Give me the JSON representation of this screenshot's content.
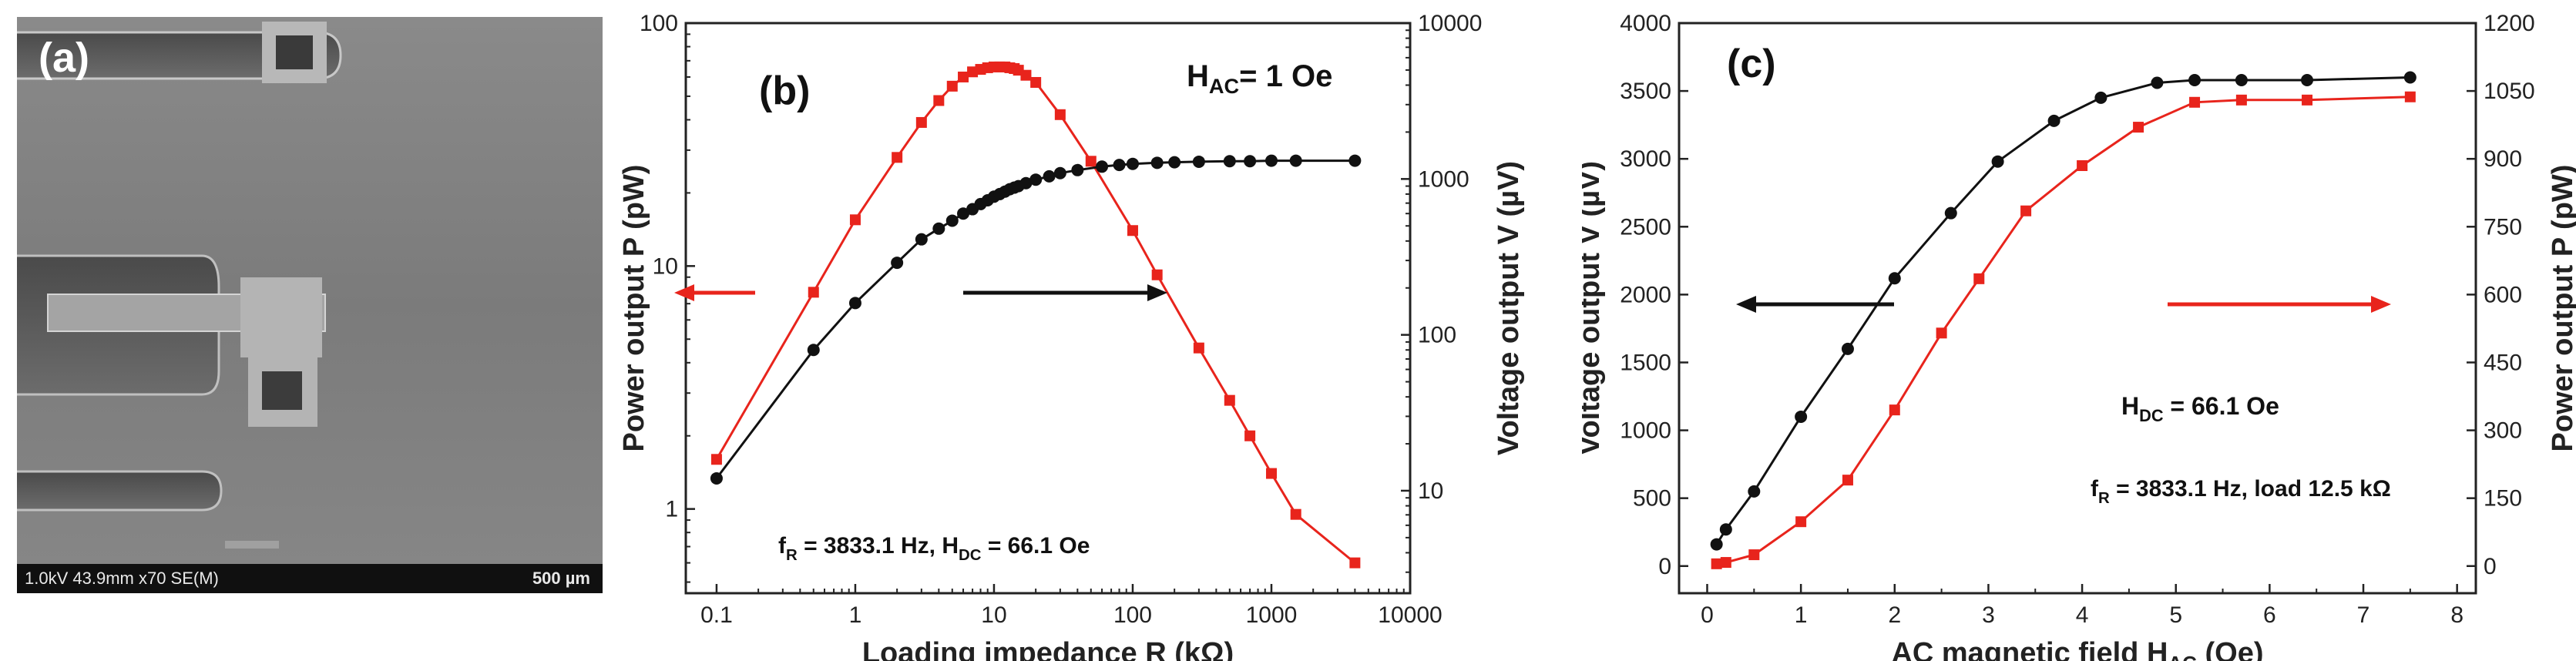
{
  "panel_a": {
    "label": "(a)",
    "sem_info": "1.0kV 43.9mm x70 SE(M)",
    "scale_bar": "500 µm"
  },
  "chart_data": [
    {
      "type": "line",
      "panel_label": "(b)",
      "xscale": "log",
      "xlim": [
        0.06,
        10000
      ],
      "xticks": [
        "0.1",
        "1",
        "10",
        "100",
        "1000",
        "10000"
      ],
      "xlabel": "Loading impedance R (kΩ)",
      "y_left": {
        "label": "Power output P (pW)",
        "scale": "log",
        "lim": [
          0.45,
          100
        ],
        "ticks": [
          "1",
          "10",
          "100"
        ]
      },
      "y_right": {
        "label": "Voltage output V (µV)",
        "scale": "log",
        "lim": [
          2.2,
          10000
        ],
        "ticks": [
          "10",
          "100",
          "1000",
          "10000"
        ]
      },
      "annotations": [
        {
          "text": "H",
          "sub": "AC",
          "rest": "= 1 Oe"
        },
        {
          "text": "f",
          "sub": "R",
          "rest": " = 3833.1 Hz,   H",
          "sub2": "DC",
          "rest2": " = 66.1 Oe"
        }
      ],
      "series": [
        {
          "name": "Power",
          "axis": "left",
          "color": "#e8241c",
          "marker": "square",
          "x": [
            0.1,
            0.5,
            1,
            2,
            3,
            4,
            5,
            6,
            7,
            8,
            9,
            10,
            11,
            12,
            13,
            14,
            15,
            17,
            20,
            30,
            50,
            100,
            150,
            300,
            500,
            700,
            1000,
            1500,
            4000
          ],
          "y": [
            1.6,
            7.8,
            15.5,
            28,
            39,
            48,
            55,
            60,
            63,
            64.5,
            65.5,
            66,
            66,
            66,
            65.5,
            65,
            64,
            61,
            57,
            42,
            27,
            14,
            9.2,
            4.6,
            2.8,
            2.0,
            1.4,
            0.95,
            0.6
          ]
        },
        {
          "name": "Voltage",
          "axis": "right",
          "color": "#111111",
          "marker": "circle",
          "x": [
            0.1,
            0.5,
            1,
            2,
            3,
            4,
            5,
            6,
            7,
            8,
            9,
            10,
            11,
            12,
            13,
            14,
            15,
            17,
            20,
            25,
            30,
            40,
            60,
            80,
            100,
            150,
            200,
            300,
            500,
            700,
            1000,
            1500,
            4000
          ],
          "y": [
            12,
            80,
            160,
            290,
            410,
            480,
            540,
            600,
            640,
            690,
            730,
            770,
            800,
            830,
            860,
            880,
            900,
            940,
            990,
            1040,
            1090,
            1140,
            1200,
            1230,
            1250,
            1270,
            1280,
            1290,
            1300,
            1300,
            1310,
            1310,
            1310
          ]
        }
      ],
      "arrows": [
        {
          "direction": "left",
          "color": "#e8241c"
        },
        {
          "direction": "right",
          "color": "#111111"
        }
      ]
    },
    {
      "type": "line",
      "panel_label": "(c)",
      "xlim": [
        -0.3,
        8.2
      ],
      "xticks": [
        "0",
        "1",
        "2",
        "3",
        "4",
        "5",
        "6",
        "7",
        "8"
      ],
      "xlabel": "AC magnetic field H",
      "xlabel_sub": "AC",
      "xlabel_rest": " (Oe)",
      "y_left": {
        "label": "Voltage output V (µV)",
        "lim": [
          -200,
          4000
        ],
        "ticks": [
          "0",
          "500",
          "1000",
          "1500",
          "2000",
          "2500",
          "3000",
          "3500",
          "4000"
        ]
      },
      "y_right": {
        "label": "Power output P (pW)",
        "lim": [
          -60,
          1200
        ],
        "ticks": [
          "0",
          "150",
          "300",
          "450",
          "600",
          "750",
          "900",
          "1050",
          "1200"
        ]
      },
      "annotations": [
        {
          "text": "H",
          "sub": "DC",
          "rest": " = 66.1 Oe"
        },
        {
          "text": "f",
          "sub": "R",
          "rest": " = 3833.1 Hz,  load 12.5 kΩ"
        }
      ],
      "series": [
        {
          "name": "Voltage",
          "axis": "left",
          "color": "#111111",
          "marker": "circle",
          "x": [
            0.1,
            0.2,
            0.5,
            1.0,
            1.5,
            2.0,
            2.6,
            3.1,
            3.7,
            4.2,
            4.8,
            5.2,
            5.7,
            6.4,
            7.5
          ],
          "y": [
            160,
            270,
            550,
            1100,
            1600,
            2120,
            2600,
            2980,
            3280,
            3450,
            3560,
            3580,
            3580,
            3580,
            3600
          ]
        },
        {
          "name": "Power",
          "axis": "right",
          "color": "#e8241c",
          "marker": "square",
          "x": [
            0.1,
            0.2,
            0.5,
            1.0,
            1.5,
            2.0,
            2.5,
            2.9,
            3.4,
            4.0,
            4.6,
            5.2,
            5.7,
            6.4,
            7.5
          ],
          "y": [
            5,
            8,
            25,
            98,
            190,
            345,
            515,
            635,
            785,
            885,
            970,
            1025,
            1030,
            1030,
            1037
          ]
        }
      ],
      "arrows": [
        {
          "direction": "left",
          "color": "#111111"
        },
        {
          "direction": "right",
          "color": "#e8241c"
        }
      ]
    }
  ]
}
